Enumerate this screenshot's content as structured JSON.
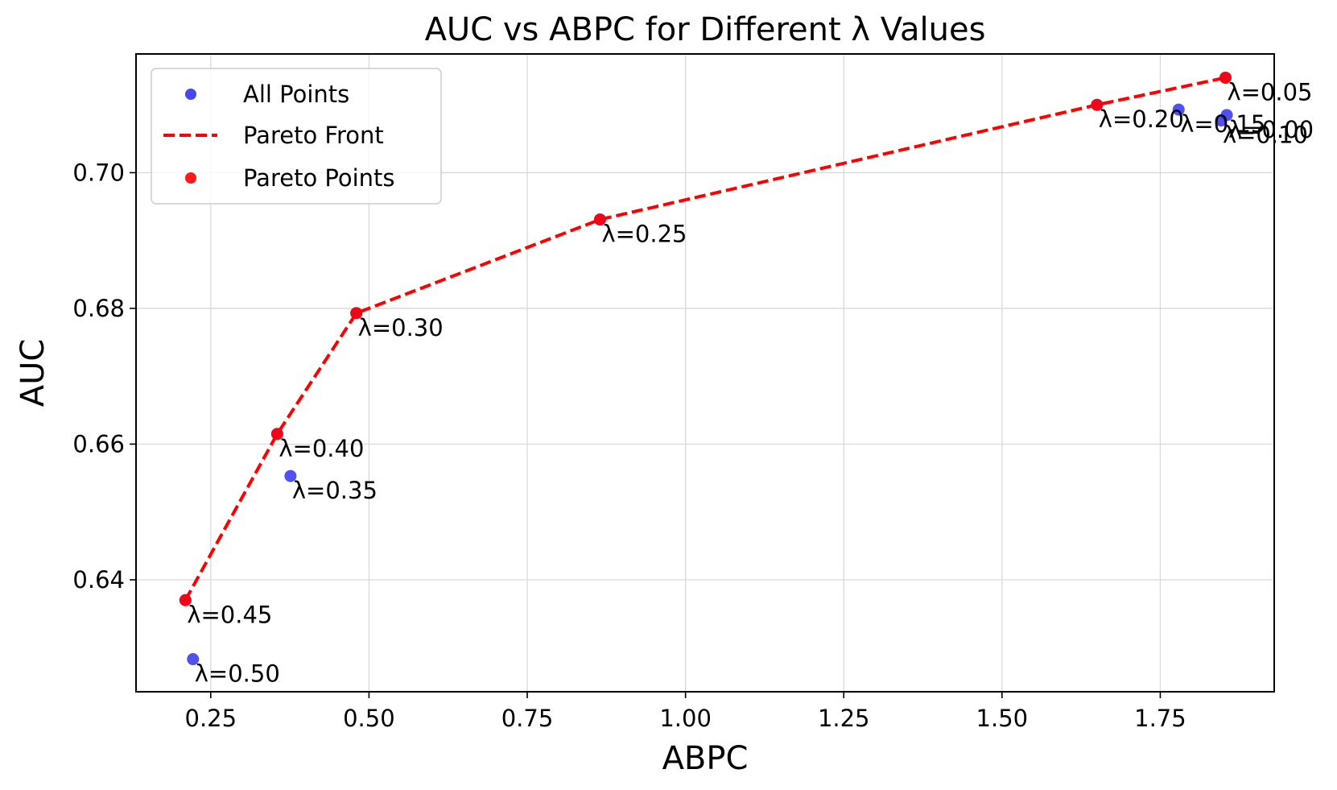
{
  "chart_data": {
    "type": "scatter",
    "title": "AUC vs ABPC for Different λ Values",
    "xlabel": "ABPC",
    "ylabel": "AUC",
    "xlim": [
      0.132,
      1.93
    ],
    "ylim": [
      0.6235,
      0.7175
    ],
    "x_ticks": [
      "0.25",
      "0.50",
      "0.75",
      "1.00",
      "1.25",
      "1.50",
      "1.75"
    ],
    "x_tick_values": [
      0.25,
      0.5,
      0.75,
      1.0,
      1.25,
      1.5,
      1.75
    ],
    "y_ticks": [
      "0.64",
      "0.66",
      "0.68",
      "0.70"
    ],
    "y_tick_values": [
      0.64,
      0.66,
      0.68,
      0.7
    ],
    "grid": true,
    "legend_position": "top-left",
    "legend": [
      "All Points",
      "Pareto Front",
      "Pareto Points"
    ],
    "colors": {
      "all_points": "#3333ee",
      "pareto": "#ff0000"
    },
    "all_points": [
      {
        "label": "λ=0.05",
        "x": 1.853,
        "y": 0.714
      },
      {
        "label": "λ=0.10",
        "x": 1.846,
        "y": 0.7077
      },
      {
        "label": "λ=0.15",
        "x": 1.779,
        "y": 0.7093
      },
      {
        "label": "λ=0.20",
        "x": 1.65,
        "y": 0.71
      },
      {
        "label": "λ=0.25",
        "x": 0.865,
        "y": 0.6931
      },
      {
        "label": "λ=0.30",
        "x": 0.48,
        "y": 0.6793
      },
      {
        "label": "λ=0.35",
        "x": 0.376,
        "y": 0.6553
      },
      {
        "label": "λ=0.40",
        "x": 0.355,
        "y": 0.6615
      },
      {
        "label": "λ=0.45",
        "x": 0.21,
        "y": 0.637
      },
      {
        "label": "λ=0.50",
        "x": 0.222,
        "y": 0.6283
      },
      {
        "label": "λ=0.00",
        "x": 1.855,
        "y": 0.7085
      }
    ],
    "pareto_points": [
      {
        "x": 0.21,
        "y": 0.637
      },
      {
        "x": 0.355,
        "y": 0.6615
      },
      {
        "x": 0.48,
        "y": 0.6793
      },
      {
        "x": 0.865,
        "y": 0.6931
      },
      {
        "x": 1.65,
        "y": 0.71
      },
      {
        "x": 1.853,
        "y": 0.714
      }
    ]
  }
}
